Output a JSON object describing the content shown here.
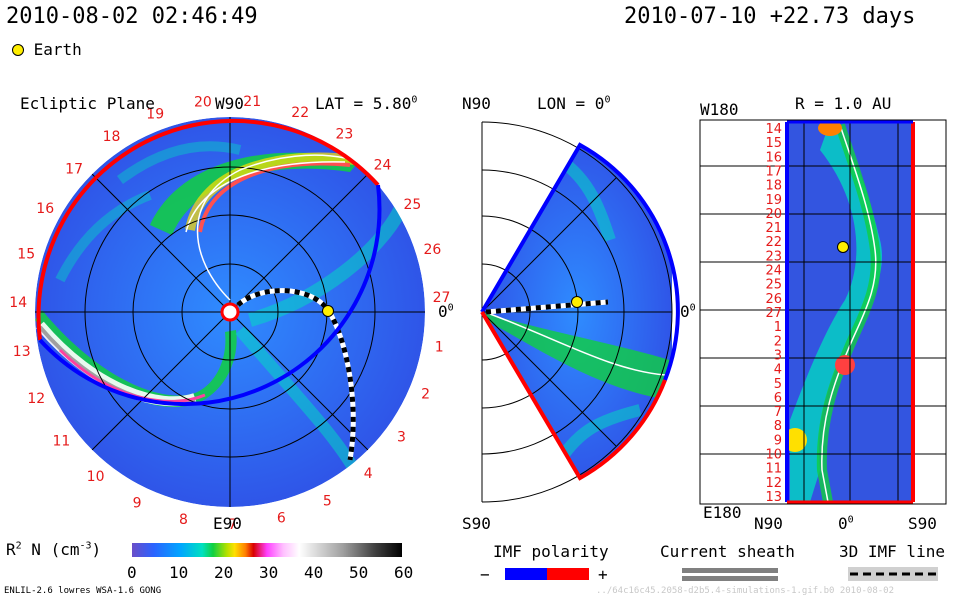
{
  "header": {
    "datetime": "2010-08-02 02:46:49",
    "reference": "2010-07-10 +22.73 days",
    "legend_earth": "Earth"
  },
  "panels": {
    "ecliptic": {
      "title": "Ecliptic Plane",
      "top_label": "W90",
      "bottom_label": "E90",
      "lat_label": "LAT = 5.80",
      "lat_sup": "0",
      "zero_label": "0",
      "zero_sup": "0",
      "carrington": [
        "1",
        "2",
        "3",
        "4",
        "5",
        "6",
        "7",
        "8",
        "9",
        "10",
        "11",
        "12",
        "13",
        "14",
        "15",
        "16",
        "17",
        "18",
        "19",
        "20",
        "21",
        "22",
        "23",
        "24",
        "25",
        "26",
        "27"
      ]
    },
    "meridional": {
      "top_label": "N90",
      "bottom_label": "S90",
      "lon_label": "LON = 0",
      "lon_sup": "0",
      "zero_label": "0",
      "zero_sup": "0"
    },
    "synoptic": {
      "r_label": "R = 1.0 AU",
      "top_left": "W180",
      "bottom_left": "E180",
      "x_left": "N90",
      "x_mid": "0",
      "x_mid_sup": "0",
      "x_right": "S90",
      "y_labels": [
        "14",
        "15",
        "16",
        "17",
        "18",
        "19",
        "20",
        "21",
        "22",
        "23",
        "24",
        "25",
        "26",
        "27",
        "1",
        "2",
        "3",
        "4",
        "5",
        "6",
        "7",
        "8",
        "9",
        "10",
        "11",
        "12",
        "13"
      ]
    }
  },
  "colorbar": {
    "label": "R",
    "label_sup": "2",
    "label_rest": " N (cm",
    "label_exp": "-3",
    "label_end": ")",
    "ticks": [
      "0",
      "10",
      "20",
      "30",
      "40",
      "50",
      "60"
    ],
    "colors": [
      "#5050c8",
      "#2b63ff",
      "#00a6ff",
      "#00e0c0",
      "#10d040",
      "#9ee000",
      "#ffe000",
      "#ff8000",
      "#e00000",
      "#ff40ff",
      "#ffb0ff",
      "#ffffff",
      "#c8c8c8",
      "#808080",
      "#303030",
      "#000000"
    ]
  },
  "legends": {
    "imf_title": "IMF polarity",
    "imf_minus": "−",
    "imf_plus": "+",
    "imf_neg_color": "#0000ff",
    "imf_pos_color": "#ff0000",
    "sheath_title": "Current sheath",
    "imf_line_title": "3D IMF line"
  },
  "footer": {
    "model": "ENLIL-2.6 lowres WSA-1.6 GONG",
    "watermark": "../64c16c45.2058-d2b5.4-simulations-1.gif.b0    2010-08-02"
  },
  "colors": {
    "background_field": "#3355e0",
    "earth": "#ffee00",
    "boundary_neg": "#0000ff",
    "boundary_pos": "#ff0000"
  }
}
